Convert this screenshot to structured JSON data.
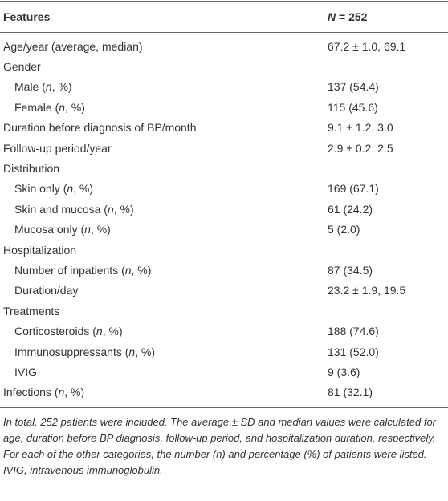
{
  "table": {
    "header": {
      "label": [
        {
          "text": "Features"
        }
      ],
      "value": [
        {
          "text": "N",
          "italic": true
        },
        {
          "text": " = 252"
        }
      ]
    },
    "rows": [
      {
        "label": [
          {
            "text": "Age/year (average, median)"
          }
        ],
        "value": "67.2 ± 1.0, 69.1"
      },
      {
        "label": [
          {
            "text": "Gender"
          }
        ],
        "items": [
          {
            "label": [
              {
                "text": "Male ("
              },
              {
                "text": "n",
                "italic": true
              },
              {
                "text": ", %)"
              }
            ],
            "value": "137 (54.4)"
          },
          {
            "label": [
              {
                "text": "Female ("
              },
              {
                "text": "n",
                "italic": true
              },
              {
                "text": ", %)"
              }
            ],
            "value": "115 (45.6)"
          }
        ]
      },
      {
        "label": [
          {
            "text": "Duration before diagnosis of BP/month"
          }
        ],
        "value": "9.1 ± 1.2, 3.0"
      },
      {
        "label": [
          {
            "text": "Follow-up period/year"
          }
        ],
        "value": "2.9 ± 0.2, 2.5"
      },
      {
        "label": [
          {
            "text": "Distribution"
          }
        ],
        "items": [
          {
            "label": [
              {
                "text": "Skin only ("
              },
              {
                "text": "n",
                "italic": true
              },
              {
                "text": ", %)"
              }
            ],
            "value": "169 (67.1)"
          },
          {
            "label": [
              {
                "text": "Skin and mucosa ("
              },
              {
                "text": "n",
                "italic": true
              },
              {
                "text": ", %)"
              }
            ],
            "value": "61 (24.2)"
          },
          {
            "label": [
              {
                "text": "Mucosa only ("
              },
              {
                "text": "n",
                "italic": true
              },
              {
                "text": ", %)"
              }
            ],
            "value": "5 (2.0)"
          }
        ]
      },
      {
        "label": [
          {
            "text": "Hospitalization"
          }
        ],
        "items": [
          {
            "label": [
              {
                "text": "Number of inpatients ("
              },
              {
                "text": "n",
                "italic": true
              },
              {
                "text": ", %)"
              }
            ],
            "value": "87 (34.5)"
          },
          {
            "label": [
              {
                "text": "Duration/day"
              }
            ],
            "value": "23.2 ± 1.9, 19.5"
          }
        ]
      },
      {
        "label": [
          {
            "text": "Treatments"
          }
        ],
        "items": [
          {
            "label": [
              {
                "text": "Corticosteroids ("
              },
              {
                "text": "n",
                "italic": true
              },
              {
                "text": ", %)"
              }
            ],
            "value": "188 (74.6)"
          },
          {
            "label": [
              {
                "text": "Immunosuppressants ("
              },
              {
                "text": "n",
                "italic": true
              },
              {
                "text": ", %)"
              }
            ],
            "value": "131 (52.0)"
          },
          {
            "label": [
              {
                "text": "IVIG"
              }
            ],
            "value": "9 (3.6)"
          }
        ]
      },
      {
        "label": [
          {
            "text": "Infections ("
          },
          {
            "text": "n",
            "italic": true
          },
          {
            "text": ", %)"
          }
        ],
        "value": "81 (32.1)"
      }
    ],
    "note": "In total, 252 patients were included. The average ± SD and median values were calculated for age, duration before BP diagnosis, follow-up period, and hospitalization duration, respectively. For each of the other categories, the number (n) and percentage (%) of patients were listed. IVIG, intravenous immunoglobulin."
  }
}
